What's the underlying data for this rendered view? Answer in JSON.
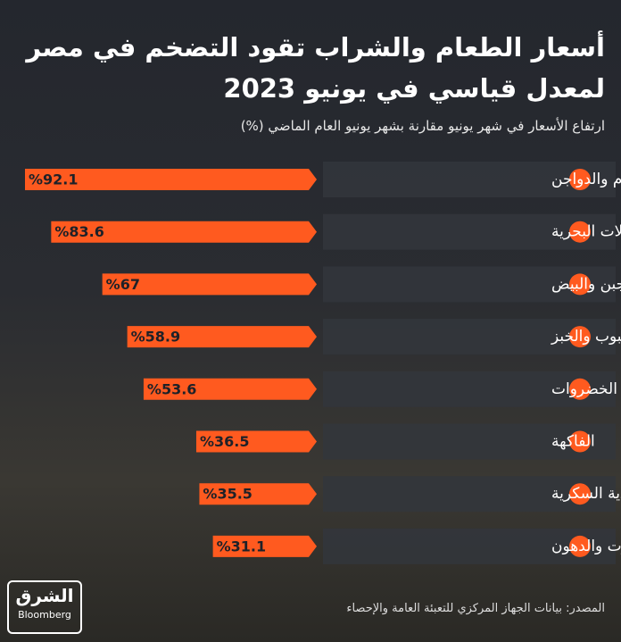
{
  "chart_data": {
    "type": "bar",
    "title": "أسعار الطعام والشراب تقود التضخم في مصر لمعدل قياسي في يونيو 2023",
    "subtitle": "ارتفاع الأسعار في شهر يونيو مقارنة بشهر يونيو العام الماضي (%)",
    "categories": [
      "اللحوم والدواجن",
      "الأسماك والمأكولات البحرية",
      "الألبان والجبن والبيض",
      "الحبوب والخبز",
      "الخضروات",
      "الفاكهة",
      "السكر والأغذية السكرية",
      "الزيوت والدهون"
    ],
    "values": [
      92.1,
      83.6,
      67,
      58.9,
      53.6,
      36.5,
      35.5,
      31.1
    ],
    "value_labels": [
      "%92.1",
      "%83.6",
      "%67",
      "%58.9",
      "%53.6",
      "%36.5",
      "%35.5",
      "%31.1"
    ],
    "color": "#ff5a1f",
    "source": "المصدر: بيانات الجهاز المركزي للتعبئة العامة والإحصاء",
    "logo": "الشرق",
    "logo_sub": "Bloomberg"
  }
}
